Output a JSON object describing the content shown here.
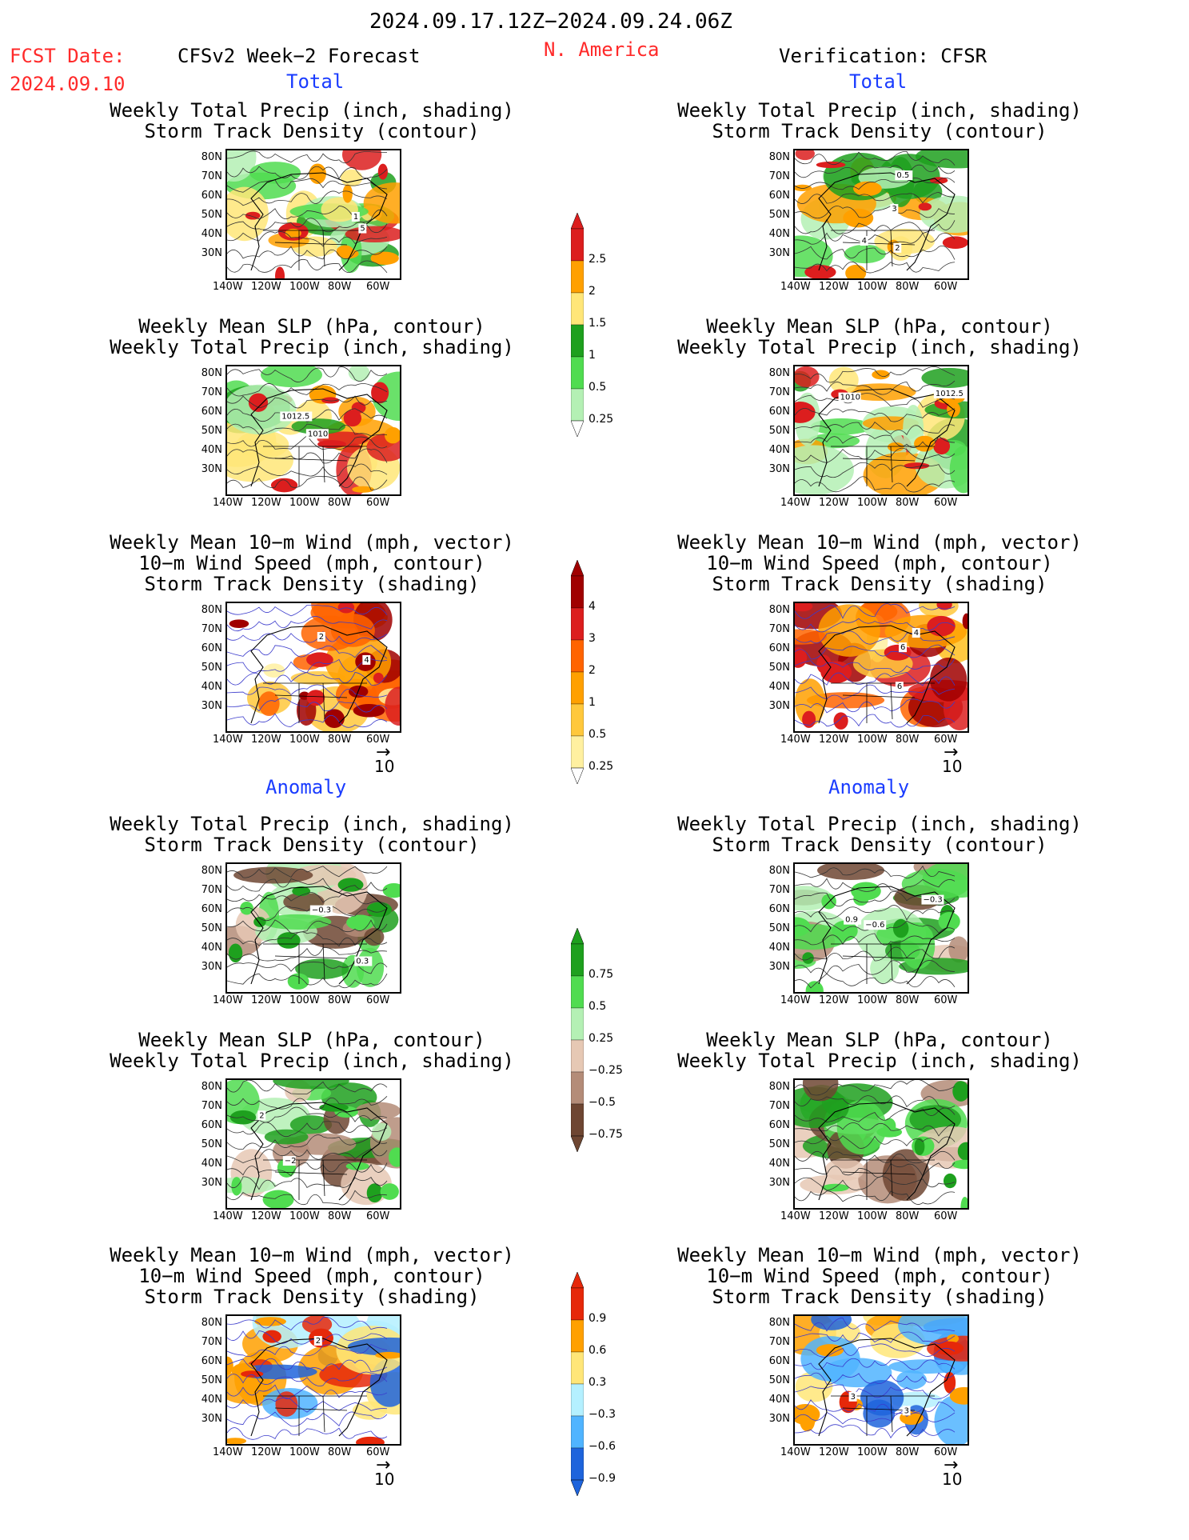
{
  "header": {
    "date_range": "2024.09.17.12Z−2024.09.24.06Z",
    "fcst_label": "FCST Date:",
    "fcst_date": "2024.09.10",
    "model_label": "CFSv2 Week−2 Forecast",
    "region": "N. America",
    "verification": "Verification: CFSR"
  },
  "sections": {
    "total_left": "Total",
    "total_right": "Total",
    "anomaly_left": "Anomaly",
    "anomaly_right": "Anomaly"
  },
  "panel_titles": {
    "precip_track": [
      "Weekly Total Precip (inch, shading)",
      "Storm Track Density (contour)"
    ],
    "slp_precip": [
      "Weekly Mean SLP (hPa, contour)",
      "Weekly Total Precip (inch, shading)"
    ],
    "wind": [
      "Weekly Mean 10−m Wind (mph, vector)",
      "10−m Wind Speed (mph, contour)",
      "Storm Track Density (shading)"
    ]
  },
  "axes": {
    "lat": [
      "80N",
      "70N",
      "60N",
      "50N",
      "40N",
      "30N"
    ],
    "lon": [
      "140W",
      "120W",
      "100W",
      "80W",
      "60W"
    ]
  },
  "vector_scale": "10",
  "colorbars": {
    "precip_total": [
      "2.5",
      "2",
      "1.5",
      "1",
      "0.5",
      "0.25"
    ],
    "storm_total": [
      "4",
      "3",
      "2",
      "1",
      "0.5",
      "0.25"
    ],
    "precip_anom": [
      "0.75",
      "0.5",
      "0.25",
      "−0.25",
      "−0.5",
      "−0.75"
    ],
    "storm_anom": [
      "0.9",
      "0.6",
      "0.3",
      "−0.3",
      "−0.6",
      "−0.9"
    ]
  },
  "contour_labels": {
    "p1l": [
      "5",
      "1"
    ],
    "p1r": [
      "4",
      "3",
      "2",
      "0.5"
    ],
    "p2l": [
      "1010",
      "1012.5"
    ],
    "p2r": [
      "1012.5",
      "1010"
    ],
    "p3l": [
      "4",
      "2"
    ],
    "p3r": [
      "6",
      "6",
      "4"
    ],
    "p4l": [
      "−0.3",
      "0.3"
    ],
    "p4r": [
      "−0.6",
      "0.9",
      "−0.3"
    ],
    "p5l": [
      "2",
      "−2"
    ],
    "p5r": [],
    "p6l": [
      "2"
    ],
    "p6r": [
      "3",
      "3"
    ]
  },
  "colors": {
    "precip_total": [
      "#dc1e1e",
      "#ffa000",
      "#ffe678",
      "#1ea01e",
      "#50dc50",
      "#b4f0b4"
    ],
    "storm_total": [
      "#a00000",
      "#dc1e1e",
      "#ff6400",
      "#ffa000",
      "#ffc83c",
      "#fff0a0"
    ],
    "precip_anom": [
      "#1ea01e",
      "#50dc50",
      "#b4f0b4",
      "#e6c8b4",
      "#b48c78",
      "#6e4632"
    ],
    "storm_anom": [
      "#e6280a",
      "#ffa000",
      "#ffe678",
      "#b4f0ff",
      "#50b4ff",
      "#1e64dc"
    ]
  }
}
